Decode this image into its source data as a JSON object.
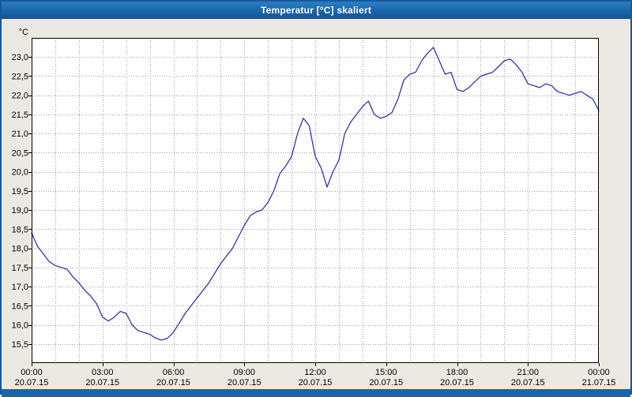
{
  "window": {
    "title": "Temperatur [°C] skaliert"
  },
  "colors": {
    "titlebar_blue": "#1965aa",
    "window_background": "#ece9e1",
    "plot_background": "#ffffff",
    "plot_border": "#000000",
    "gridline": "#9e9e9e",
    "series_line": "#2626a8",
    "tick_text": "#000000"
  },
  "chart_data": {
    "type": "line",
    "title": "Temperatur [°C] skaliert",
    "ylabel": "°C",
    "ylim": [
      15.0,
      23.5
    ],
    "yticks": [
      15.5,
      16.0,
      16.5,
      17.0,
      17.5,
      18.0,
      18.5,
      19.0,
      19.5,
      20.0,
      20.5,
      21.0,
      21.5,
      22.0,
      22.5,
      23.0
    ],
    "ytick_labels": [
      "15,5",
      "16,0",
      "16,5",
      "17,0",
      "17,5",
      "18,0",
      "18,5",
      "19,0",
      "19,5",
      "20,0",
      "20,5",
      "21,0",
      "21,5",
      "22,0",
      "22,5",
      "23,0"
    ],
    "xlim_hours": [
      0,
      24
    ],
    "x_grid_step_hours": 1,
    "xticks_hours": [
      0,
      3,
      6,
      9,
      12,
      15,
      18,
      21,
      24
    ],
    "xtick_time_labels": [
      "00:00",
      "03:00",
      "06:00",
      "09:00",
      "12:00",
      "15:00",
      "18:00",
      "21:00",
      "00:00"
    ],
    "xtick_date_labels": [
      "20.07.15",
      "20.07.15",
      "20.07.15",
      "20.07.15",
      "20.07.15",
      "20.07.15",
      "20.07.15",
      "20.07.15",
      "21.07.15"
    ],
    "grid": "dotted",
    "legend": "none",
    "series": [
      {
        "name": "Temperatur",
        "start_hour": 0,
        "sample_interval_hours": 0.25,
        "values": [
          18.4,
          18.05,
          17.85,
          17.65,
          17.55,
          17.5,
          17.45,
          17.25,
          17.1,
          16.9,
          16.75,
          16.55,
          16.2,
          16.1,
          16.2,
          16.35,
          16.3,
          16.0,
          15.85,
          15.8,
          15.75,
          15.65,
          15.6,
          15.65,
          15.8,
          16.05,
          16.3,
          16.5,
          16.7,
          16.9,
          17.1,
          17.35,
          17.6,
          17.8,
          18.0,
          18.3,
          18.6,
          18.85,
          18.95,
          19.0,
          19.2,
          19.5,
          19.95,
          20.15,
          20.4,
          21.0,
          21.4,
          21.2,
          20.4,
          20.1,
          19.6,
          20.0,
          20.3,
          21.0,
          21.3,
          21.5,
          21.7,
          21.85,
          21.5,
          21.4,
          21.45,
          21.55,
          21.9,
          22.4,
          22.55,
          22.6,
          22.9,
          23.1,
          23.25,
          22.9,
          22.55,
          22.6,
          22.15,
          22.1,
          22.2,
          22.35,
          22.5,
          22.55,
          22.6,
          22.75,
          22.9,
          22.95,
          22.8,
          22.6,
          22.3,
          22.25,
          22.2,
          22.3,
          22.25,
          22.1,
          22.05,
          22.0,
          22.05,
          22.1,
          22.0,
          21.9,
          21.6
        ]
      }
    ]
  }
}
